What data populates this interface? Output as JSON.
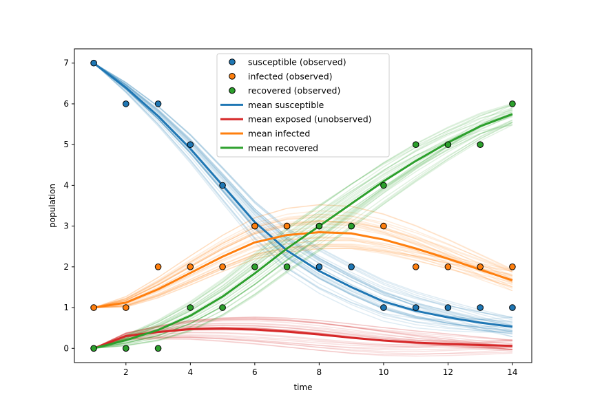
{
  "chart_data": {
    "type": "line",
    "title": "",
    "xlabel": "time",
    "ylabel": "population",
    "xlim": [
      0.4,
      14.6
    ],
    "ylim": [
      -0.35,
      7.35
    ],
    "xticks": [
      2,
      4,
      6,
      8,
      10,
      12,
      14
    ],
    "yticks": [
      0,
      1,
      2,
      3,
      4,
      5,
      6,
      7
    ],
    "grid": false,
    "legend_position": "top-center",
    "x": [
      1,
      2,
      3,
      4,
      5,
      6,
      7,
      8,
      9,
      10,
      11,
      12,
      13,
      14
    ],
    "observed": [
      {
        "name": "susceptible (observed)",
        "color": "#1f77b4",
        "values": [
          7,
          6,
          6,
          5,
          4,
          3,
          3,
          2,
          2,
          1,
          1,
          1,
          1,
          1
        ]
      },
      {
        "name": "infected (observed)",
        "color": "#ff7f0e",
        "values": [
          1,
          1,
          2,
          2,
          2,
          3,
          3,
          3,
          3,
          3,
          2,
          2,
          2,
          2
        ]
      },
      {
        "name": "recovered (observed)",
        "color": "#2ca02c",
        "values": [
          0,
          0,
          0,
          1,
          1,
          2,
          2,
          3,
          3,
          4,
          5,
          5,
          5,
          6
        ]
      }
    ],
    "series": [
      {
        "name": "mean susceptible",
        "color": "#1f77b4",
        "values": [
          7.0,
          6.4,
          5.7,
          4.9,
          4.0,
          3.1,
          2.4,
          1.9,
          1.5,
          1.15,
          0.92,
          0.76,
          0.63,
          0.53
        ]
      },
      {
        "name": "mean exposed (unobserved)",
        "color": "#d62728",
        "values": [
          0.0,
          0.3,
          0.4,
          0.47,
          0.48,
          0.46,
          0.41,
          0.34,
          0.26,
          0.19,
          0.14,
          0.11,
          0.08,
          0.06
        ]
      },
      {
        "name": "mean infected",
        "color": "#ff7f0e",
        "values": [
          1.0,
          1.12,
          1.45,
          1.85,
          2.25,
          2.6,
          2.78,
          2.85,
          2.82,
          2.67,
          2.45,
          2.2,
          1.93,
          1.67
        ]
      },
      {
        "name": "mean recovered",
        "color": "#2ca02c",
        "values": [
          0.0,
          0.2,
          0.45,
          0.8,
          1.27,
          1.84,
          2.45,
          3.0,
          3.55,
          4.1,
          4.6,
          5.05,
          5.45,
          5.75
        ]
      }
    ]
  }
}
